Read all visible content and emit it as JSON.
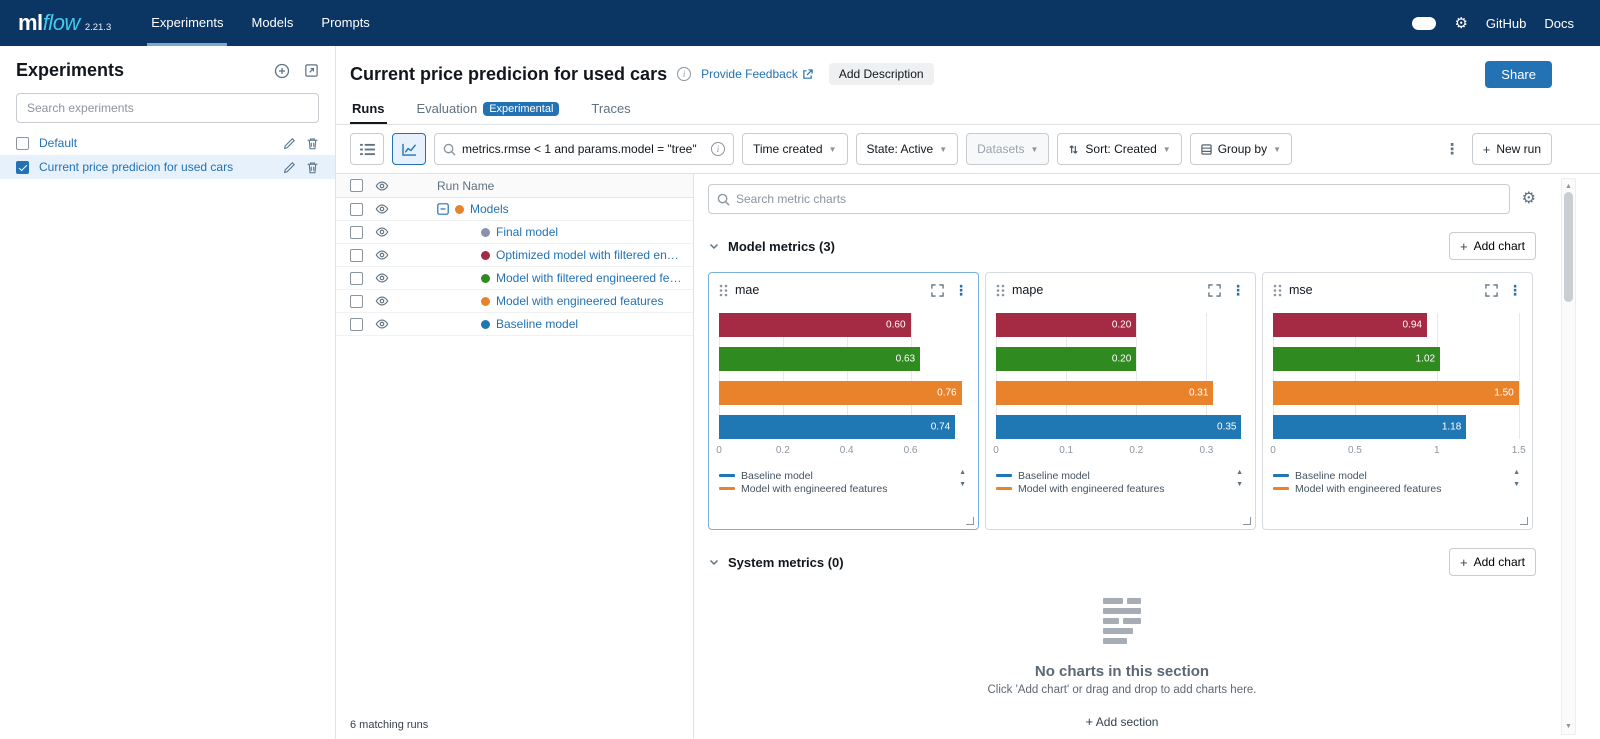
{
  "colors": {
    "accent": "#2272b4",
    "navbar_bg": "#0b3562",
    "logo_cyan": "#43c9ed",
    "selected_row_bg": "#e7f1fb",
    "bar_red": "#a52a44",
    "bar_green": "#2f8a1f",
    "bar_orange": "#e8832c",
    "bar_blue": "#1f77b4",
    "dot_gray": "#8a92a9"
  },
  "icons": {
    "gear": "⚙",
    "kebab": "⋮",
    "plus": "+",
    "caret_up": "▲",
    "caret_down": "▼",
    "info": "i"
  },
  "navbar": {
    "logo_ml": "ml",
    "logo_flow": "flow",
    "version": "2.21.3",
    "tabs": [
      {
        "label": "Experiments",
        "active": true
      },
      {
        "label": "Models",
        "active": false
      },
      {
        "label": "Prompts",
        "active": false
      }
    ],
    "links": [
      "GitHub",
      "Docs"
    ]
  },
  "sidebar": {
    "title": "Experiments",
    "search_placeholder": "Search experiments",
    "items": [
      {
        "name": "Default",
        "selected": false,
        "checked": false
      },
      {
        "name": "Current price predicion for used cars",
        "selected": true,
        "checked": true
      }
    ]
  },
  "header": {
    "title": "Current price predicion for used cars",
    "feedback_link": "Provide Feedback",
    "add_description_label": "Add Description",
    "share_label": "Share"
  },
  "view_tabs": [
    {
      "label": "Runs",
      "active": true
    },
    {
      "label": "Evaluation",
      "badge": "Experimental",
      "active": false
    },
    {
      "label": "Traces",
      "active": false
    }
  ],
  "toolbar": {
    "search_value": "metrics.rmse < 1 and params.model = \"tree\"",
    "time_created": "Time created",
    "state": "State: Active",
    "datasets": "Datasets",
    "sort": "Sort: Created",
    "group_by": "Group by",
    "new_run_label": "New run"
  },
  "runs": {
    "column_header": "Run Name",
    "rows": [
      {
        "name": "Models",
        "type": "group",
        "color": "#e8832c"
      },
      {
        "name": "Final model",
        "type": "run",
        "color": "#8a92a9"
      },
      {
        "name": "Optimized model with filtered engineered features",
        "type": "run",
        "color": "#a52a44"
      },
      {
        "name": "Model with filtered engineered features",
        "type": "run",
        "color": "#2f8a1f"
      },
      {
        "name": "Model with engineered features",
        "type": "run",
        "color": "#e8832c"
      },
      {
        "name": "Baseline model",
        "type": "run",
        "color": "#1f77b4"
      }
    ],
    "footer": "6 matching runs"
  },
  "charts_panel": {
    "search_placeholder": "Search metric charts",
    "model_section_title": "Model metrics (3)",
    "system_section_title": "System metrics (0)",
    "add_chart_label": "Add chart",
    "empty_title": "No charts in this section",
    "empty_subtitle": "Click 'Add chart' or drag and drop to add charts here.",
    "add_section_label": "Add section"
  },
  "chart_data": [
    {
      "type": "bar",
      "orientation": "horizontal",
      "title": "mae",
      "categories": [
        "Optimized model with filtered engineered features",
        "Model with filtered engineered features",
        "Model with engineered features",
        "Baseline model"
      ],
      "values": [
        0.6,
        0.63,
        0.76,
        0.74
      ],
      "labels": [
        "0.60",
        "0.63",
        "0.76",
        "0.74"
      ],
      "colors": [
        "#a52a44",
        "#2f8a1f",
        "#e8832c",
        "#1f77b4"
      ],
      "xticks": [
        "0",
        "0.2",
        "0.4",
        "0.6"
      ],
      "xtick_values": [
        0,
        0.2,
        0.4,
        0.6
      ],
      "xlim": [
        0,
        0.78
      ],
      "grid": true,
      "legend_position": "bottom",
      "legend": [
        {
          "label": "Baseline model",
          "color": "#1f77b4"
        },
        {
          "label": "Model with engineered features",
          "color": "#e8832c"
        }
      ]
    },
    {
      "type": "bar",
      "orientation": "horizontal",
      "title": "mape",
      "categories": [
        "Optimized model with filtered engineered features",
        "Model with filtered engineered features",
        "Model with engineered features",
        "Baseline model"
      ],
      "values": [
        0.2,
        0.2,
        0.31,
        0.35
      ],
      "labels": [
        "0.20",
        "0.20",
        "0.31",
        "0.35"
      ],
      "colors": [
        "#a52a44",
        "#2f8a1f",
        "#e8832c",
        "#1f77b4"
      ],
      "xticks": [
        "0",
        "0.1",
        "0.2",
        "0.3"
      ],
      "xtick_values": [
        0,
        0.1,
        0.2,
        0.3
      ],
      "xlim": [
        0,
        0.355
      ],
      "grid": true,
      "legend_position": "bottom",
      "legend": [
        {
          "label": "Baseline model",
          "color": "#1f77b4"
        },
        {
          "label": "Model with engineered features",
          "color": "#e8832c"
        }
      ]
    },
    {
      "type": "bar",
      "orientation": "horizontal",
      "title": "mse",
      "categories": [
        "Optimized model with filtered engineered features",
        "Model with filtered engineered features",
        "Model with engineered features",
        "Baseline model"
      ],
      "values": [
        0.94,
        1.02,
        1.5,
        1.18
      ],
      "labels": [
        "0.94",
        "1.02",
        "1.50",
        "1.18"
      ],
      "colors": [
        "#a52a44",
        "#2f8a1f",
        "#e8832c",
        "#1f77b4"
      ],
      "xticks": [
        "0",
        "0.5",
        "1",
        "1.5"
      ],
      "xtick_values": [
        0,
        0.5,
        1,
        1.5
      ],
      "xlim": [
        0,
        1.52
      ],
      "grid": true,
      "legend_position": "bottom",
      "legend": [
        {
          "label": "Baseline model",
          "color": "#1f77b4"
        },
        {
          "label": "Model with engineered features",
          "color": "#e8832c"
        }
      ]
    }
  ]
}
